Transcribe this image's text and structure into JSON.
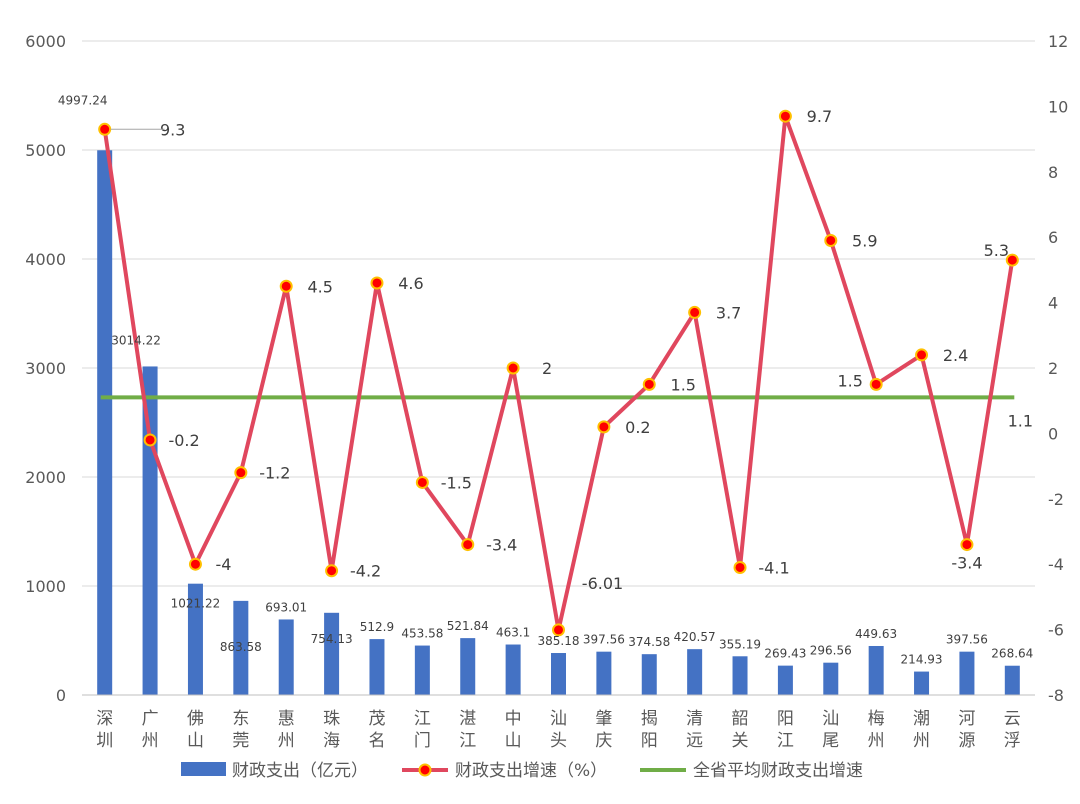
{
  "chart_data": {
    "type": "bar",
    "categories": [
      "深圳",
      "广州",
      "佛山",
      "东莞",
      "惠州",
      "珠海",
      "茂名",
      "江门",
      "湛江",
      "中山",
      "汕头",
      "肇庆",
      "揭阳",
      "清远",
      "韶关",
      "阳江",
      "汕尾",
      "梅州",
      "潮州",
      "河源",
      "云浮"
    ],
    "series": [
      {
        "name": "财政支出（亿元）",
        "type": "bar",
        "axis": "left",
        "color": "#4472C4",
        "values": [
          4997.24,
          3014.22,
          1021.22,
          863.58,
          693.01,
          754.13,
          512.9,
          453.58,
          521.84,
          463.1,
          385.18,
          397.56,
          374.58,
          420.57,
          355.19,
          269.43,
          296.56,
          449.63,
          214.93,
          397.56,
          268.64
        ],
        "labels": [
          "4997.24",
          "3014.22",
          "1021.22",
          "863.58",
          "693.01",
          "754.13",
          "512.9",
          "453.58",
          "521.84",
          "463.1",
          "385.18",
          "397.56",
          "374.58",
          "420.57",
          "355.19",
          "269.43",
          "296.56",
          "449.63",
          "214.93",
          "397.56",
          "268.64"
        ]
      },
      {
        "name": "财政支出增速（%）",
        "type": "line",
        "axis": "right",
        "color": "#E0475E",
        "marker_color": "#FF0000",
        "marker_edge": "#FFC000",
        "values": [
          9.3,
          -0.2,
          -4,
          -1.2,
          4.5,
          -4.2,
          4.6,
          -1.5,
          -3.4,
          2,
          -6.01,
          0.2,
          1.5,
          3.7,
          -4.1,
          9.7,
          5.9,
          1.5,
          2.4,
          -3.4,
          5.3
        ],
        "labels": [
          "9.3",
          "-0.2",
          "-4",
          "-1.2",
          "4.5",
          "-4.2",
          "4.6",
          "-1.5",
          "-3.4",
          "2",
          "-6.01",
          "0.2",
          "1.5",
          "3.7",
          "-4.1",
          "9.7",
          "5.9",
          "1.5",
          "2.4",
          "-3.4",
          "5.3"
        ]
      },
      {
        "name": "全省平均财政支出增速",
        "type": "line",
        "axis": "right",
        "color": "#70AD47",
        "value": 1.1,
        "label": "1.1"
      }
    ],
    "left_axis": {
      "min": 0,
      "max": 6000,
      "ticks": [
        "0",
        "1000",
        "2000",
        "3000",
        "4000",
        "5000",
        "6000"
      ]
    },
    "right_axis": {
      "min": -8,
      "max": 12,
      "ticks": [
        "-8",
        "-6",
        "-4",
        "-2",
        "0",
        "2",
        "4",
        "6",
        "8",
        "10",
        "12"
      ]
    },
    "grid": true,
    "legend_position": "bottom"
  }
}
